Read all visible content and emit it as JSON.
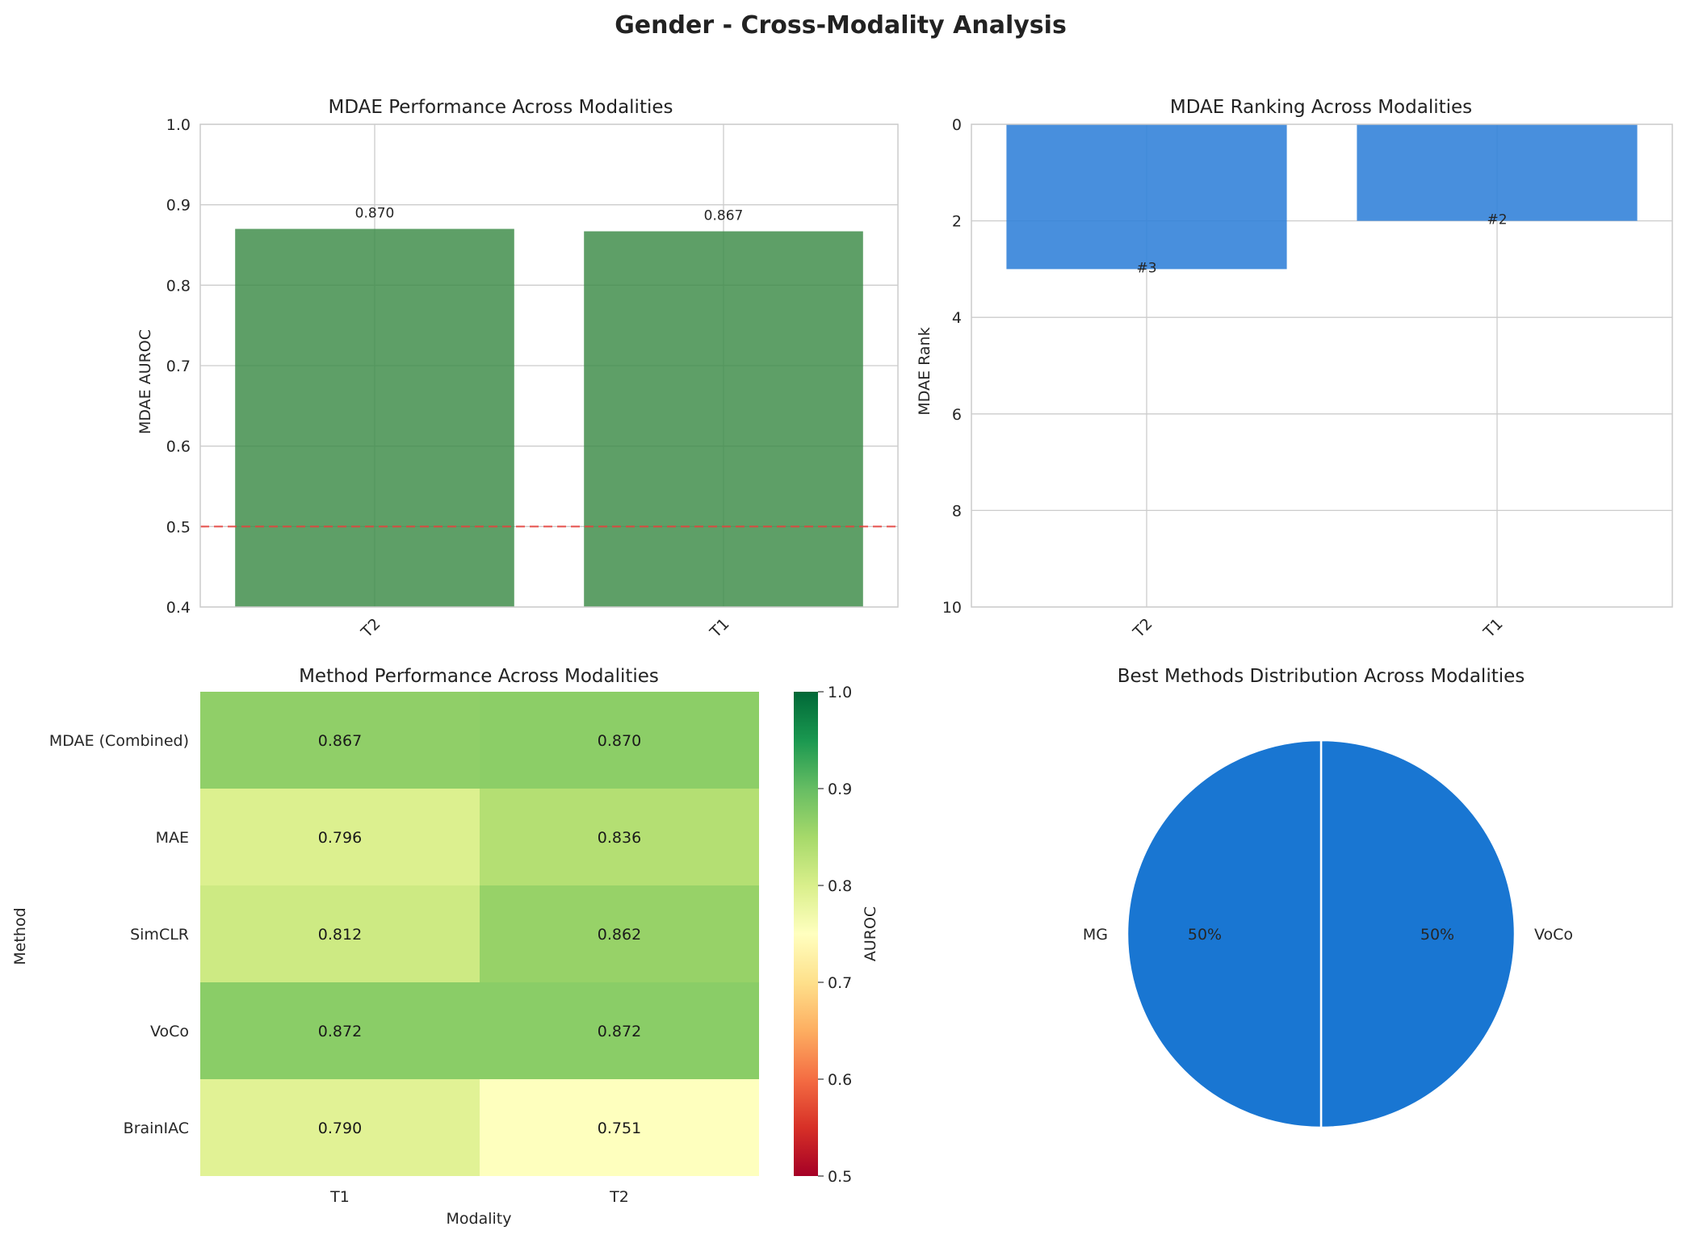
{
  "figure": {
    "title": "Gender - Cross-Modality Analysis"
  },
  "chart_data": [
    {
      "type": "bar",
      "title": "MDAE Performance Across Modalities",
      "xlabel": "",
      "ylabel": "MDAE AUROC",
      "categories": [
        "T2",
        "T1"
      ],
      "values": [
        0.87,
        0.867
      ],
      "value_labels": [
        "0.870",
        "0.867"
      ],
      "ylim": [
        0.4,
        1.0
      ],
      "yticks": [
        "0.4",
        "0.5",
        "0.6",
        "0.7",
        "0.8",
        "0.9",
        "1.0"
      ],
      "reference_line": 0.5,
      "bar_color": "#3a8a45",
      "reference_color": "#e8413c",
      "grid": true
    },
    {
      "type": "bar",
      "title": "MDAE Ranking Across Modalities",
      "xlabel": "",
      "ylabel": "MDAE Rank",
      "categories": [
        "T2",
        "T1"
      ],
      "values": [
        3,
        2
      ],
      "value_labels": [
        "#3",
        "#2"
      ],
      "ylim": [
        10,
        0
      ],
      "inverted_y": true,
      "yticks": [
        "0",
        "2",
        "4",
        "6",
        "8",
        "10"
      ],
      "bar_color": "#2f80d8",
      "grid": true
    },
    {
      "type": "heatmap",
      "title": "Method Performance Across Modalities",
      "xlabel": "Modality",
      "ylabel": "Method",
      "x": [
        "T1",
        "T2"
      ],
      "y": [
        "MDAE (Combined)",
        "MAE",
        "SimCLR",
        "VoCo",
        "BrainIAC"
      ],
      "values": [
        [
          0.867,
          0.87
        ],
        [
          0.796,
          0.836
        ],
        [
          0.812,
          0.862
        ],
        [
          0.872,
          0.872
        ],
        [
          0.79,
          0.751
        ]
      ],
      "value_labels": [
        [
          "0.867",
          "0.870"
        ],
        [
          "0.796",
          "0.836"
        ],
        [
          "0.812",
          "0.862"
        ],
        [
          "0.872",
          "0.872"
        ],
        [
          "0.790",
          "0.751"
        ]
      ],
      "colorbar": {
        "label": "AUROC",
        "range": [
          0.5,
          1.0
        ],
        "ticks": [
          "0.5",
          "0.6",
          "0.7",
          "0.8",
          "0.9",
          "1.0"
        ],
        "colormap": "RdYlGn"
      }
    },
    {
      "type": "pie",
      "title": "Best Methods Distribution Across Modalities",
      "labels": [
        "VoCo",
        "MG"
      ],
      "values": [
        50,
        50
      ],
      "pct_labels": [
        "50%",
        "50%"
      ],
      "color": "#1976d2"
    }
  ]
}
